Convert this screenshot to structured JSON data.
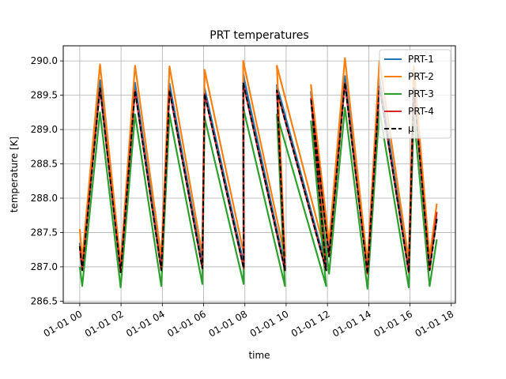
{
  "chart_data": {
    "type": "line",
    "title": "PRT temperatures",
    "xlabel": "time",
    "ylabel": "temperature [K]",
    "x_unit": "hours",
    "xlim": [
      -0.8,
      18.2
    ],
    "ylim": [
      286.47,
      290.22
    ],
    "x_ticks": [
      {
        "value": 0,
        "label": "01-01 00"
      },
      {
        "value": 2,
        "label": "01-01 02"
      },
      {
        "value": 4,
        "label": "01-01 04"
      },
      {
        "value": 6,
        "label": "01-01 06"
      },
      {
        "value": 8,
        "label": "01-01 08"
      },
      {
        "value": 10,
        "label": "01-01 10"
      },
      {
        "value": 12,
        "label": "01-01 12"
      },
      {
        "value": 14,
        "label": "01-01 14"
      },
      {
        "value": 16,
        "label": "01-01 16"
      },
      {
        "value": 18,
        "label": "01-01 18"
      }
    ],
    "y_ticks": [
      {
        "value": 286.5,
        "label": "286.5"
      },
      {
        "value": 287.0,
        "label": "287.0"
      },
      {
        "value": 287.5,
        "label": "287.5"
      },
      {
        "value": 288.0,
        "label": "288.0"
      },
      {
        "value": 288.5,
        "label": "288.5"
      },
      {
        "value": 289.0,
        "label": "289.0"
      },
      {
        "value": 289.5,
        "label": "289.5"
      },
      {
        "value": 290.0,
        "label": "290.0"
      }
    ],
    "grid": true,
    "legend": "top-right",
    "series": [
      {
        "name": "PRT-1",
        "color": "#1f77b4",
        "style": "solid",
        "x": [
          0.0,
          0.1,
          0.98,
          1.98,
          2.68,
          3.95,
          4.35,
          5.94,
          6.05,
          7.94,
          7.92,
          9.94,
          9.55,
          11.94,
          11.2,
          12.08,
          12.85,
          13.94,
          14.52,
          15.94,
          16.18,
          16.95,
          17.3
        ],
        "y": [
          287.35,
          286.98,
          289.72,
          286.95,
          289.68,
          287.02,
          289.67,
          287.05,
          289.6,
          287.05,
          289.8,
          287.0,
          289.65,
          287.0,
          289.55,
          287.2,
          289.78,
          286.95,
          289.75,
          286.98,
          289.72,
          287.0,
          287.7
        ]
      },
      {
        "name": "PRT-2",
        "color": "#ff7f0e",
        "style": "solid",
        "x": [
          0.0,
          0.12,
          0.98,
          1.98,
          2.68,
          3.95,
          4.35,
          5.94,
          6.05,
          7.94,
          7.92,
          9.94,
          9.55,
          11.94,
          11.2,
          12.08,
          12.85,
          13.94,
          14.52,
          15.94,
          16.18,
          16.95,
          17.3
        ],
        "y": [
          287.55,
          287.1,
          289.95,
          287.05,
          289.93,
          287.15,
          289.92,
          287.18,
          289.87,
          287.2,
          290.0,
          287.15,
          289.93,
          287.15,
          289.65,
          287.35,
          290.04,
          287.05,
          290.0,
          287.1,
          289.92,
          287.15,
          287.92
        ]
      },
      {
        "name": "PRT-3",
        "color": "#2ca02c",
        "style": "solid",
        "x": [
          0.0,
          0.12,
          0.98,
          1.98,
          2.68,
          3.95,
          4.35,
          5.94,
          6.05,
          7.94,
          7.92,
          9.94,
          9.55,
          11.94,
          11.2,
          12.08,
          12.85,
          13.94,
          14.52,
          15.94,
          16.18,
          16.95,
          17.3
        ],
        "y": [
          287.0,
          286.72,
          289.25,
          286.7,
          289.22,
          286.72,
          289.22,
          286.75,
          289.17,
          286.75,
          289.32,
          286.72,
          289.22,
          286.72,
          289.12,
          286.9,
          289.32,
          286.68,
          289.28,
          286.7,
          289.22,
          286.72,
          287.4
        ]
      },
      {
        "name": "PRT-4",
        "color": "#d62728",
        "style": "solid",
        "x": [
          0.0,
          0.12,
          0.98,
          1.98,
          2.68,
          3.95,
          4.35,
          5.94,
          6.05,
          7.94,
          7.92,
          9.94,
          9.55,
          11.94,
          11.2,
          12.08,
          12.85,
          13.94,
          14.52,
          15.94,
          16.18,
          16.95,
          17.3
        ],
        "y": [
          287.3,
          286.95,
          289.6,
          286.92,
          289.57,
          286.95,
          289.57,
          286.98,
          289.52,
          286.98,
          289.68,
          286.95,
          289.57,
          286.95,
          289.45,
          287.15,
          289.68,
          286.9,
          289.63,
          286.92,
          289.6,
          286.95,
          287.8
        ]
      },
      {
        "name": "μ",
        "color": "#000000",
        "style": "dashed",
        "x": [
          0.0,
          0.12,
          0.98,
          1.98,
          2.68,
          3.95,
          4.35,
          5.94,
          6.05,
          7.94,
          7.92,
          9.94,
          9.55,
          11.94,
          11.2,
          12.08,
          12.85,
          13.94,
          14.52,
          15.94,
          16.18,
          16.95,
          17.3
        ],
        "y": [
          287.3,
          286.95,
          289.6,
          286.92,
          289.57,
          286.95,
          289.57,
          286.98,
          289.52,
          286.98,
          289.68,
          286.95,
          289.57,
          286.95,
          289.45,
          287.15,
          289.68,
          286.9,
          289.63,
          286.92,
          289.6,
          286.95,
          287.7
        ]
      }
    ]
  }
}
